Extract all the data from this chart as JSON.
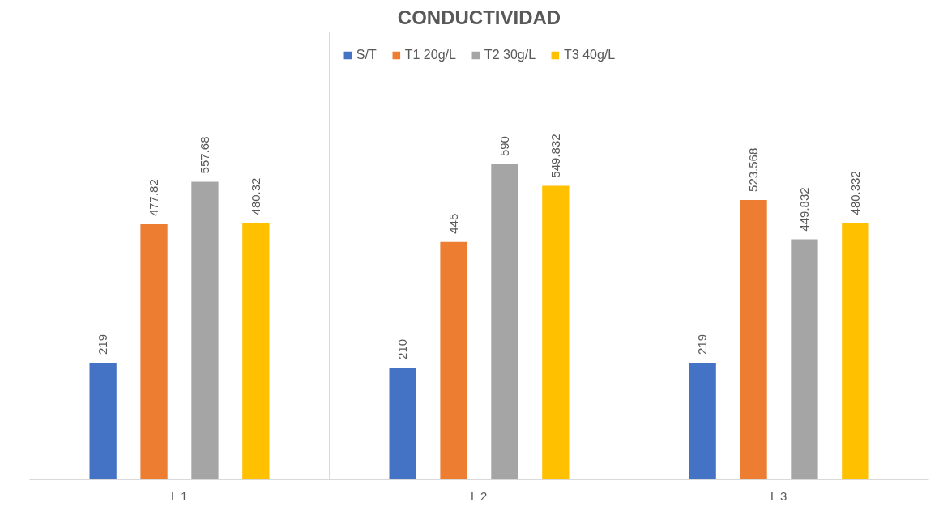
{
  "chart_data": {
    "type": "bar",
    "title": "CONDUCTIVIDAD",
    "categories": [
      "L 1",
      "L 2",
      "L 3"
    ],
    "series": [
      {
        "name": "S/T",
        "color": "#4472c4",
        "values": [
          219,
          210,
          219
        ]
      },
      {
        "name": "T1 20g/L",
        "color": "#ed7d31",
        "values": [
          477.82,
          445,
          523.568
        ]
      },
      {
        "name": "T2 30g/L",
        "color": "#a5a5a5",
        "values": [
          557.68,
          590,
          449.832
        ]
      },
      {
        "name": "T3 40g/L",
        "color": "#ffc000",
        "values": [
          480.32,
          549.832,
          480.332
        ]
      }
    ],
    "data_labels": true,
    "legend": "top",
    "grid": "x"
  }
}
